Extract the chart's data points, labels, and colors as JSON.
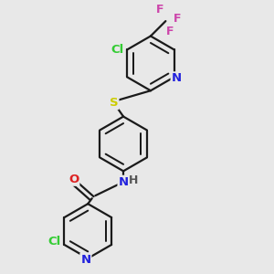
{
  "bg_color": "#e8e8e8",
  "bond_color": "#1a1a1a",
  "bond_width": 1.6,
  "atom_colors": {
    "Cl": "#33cc33",
    "S": "#cccc00",
    "N": "#2222dd",
    "O": "#dd2222",
    "F": "#cc44aa",
    "H": "#555555"
  },
  "font_size": 9.5,
  "figsize": [
    3.0,
    3.0
  ],
  "dpi": 100
}
